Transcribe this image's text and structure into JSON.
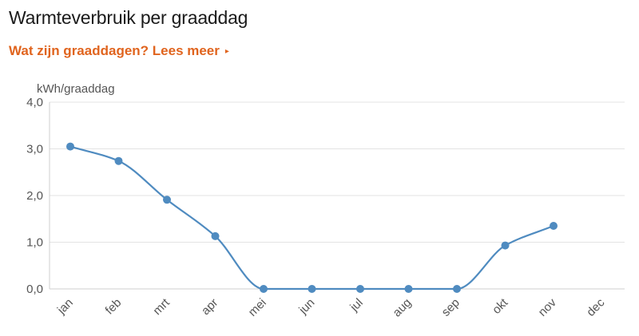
{
  "header": {
    "title": "Warmteverbruik per graaddag",
    "link_label": "Wat zijn graaddagen? Lees meer",
    "link_arrow": "▸"
  },
  "colors": {
    "series": "#4f8bc0",
    "link": "#e0641e",
    "grid": "#e3e3e3"
  },
  "chart_data": {
    "type": "line",
    "title": "Warmteverbruik per graaddag",
    "ylabel": "kWh/graaddag",
    "xlabel": "",
    "categories": [
      "jan",
      "feb",
      "mrt",
      "apr",
      "mei",
      "jun",
      "jul",
      "aug",
      "sep",
      "okt",
      "nov",
      "dec"
    ],
    "values": [
      3.05,
      2.74,
      1.91,
      1.13,
      0.0,
      0.0,
      0.0,
      0.0,
      0.0,
      0.93,
      1.35,
      null
    ],
    "ylim": [
      0,
      4
    ],
    "yticks": [
      0,
      1,
      2,
      3,
      4
    ],
    "ytick_labels": [
      "0,0",
      "1,0",
      "2,0",
      "3,0",
      "4,0"
    ],
    "grid": true,
    "legend": "none"
  }
}
